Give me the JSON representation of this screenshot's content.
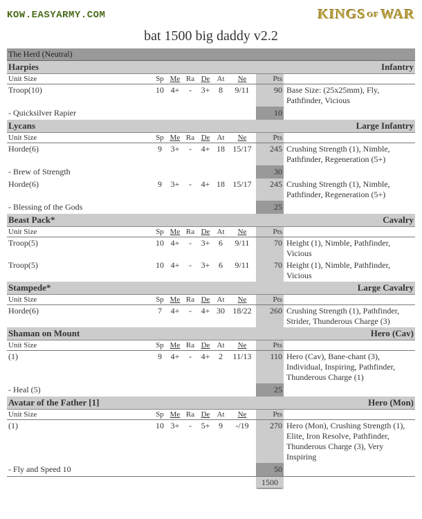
{
  "header": {
    "site_url": "KOW.EASYARMY.COM",
    "logo_left": "KINGS",
    "logo_mid": "OF",
    "logo_right": "WAR"
  },
  "list_title": "bat 1500 big daddy v2.2",
  "faction": "The Herd (Neutral)",
  "stat_labels": {
    "unit_size": "Unit Size",
    "sp": "Sp",
    "me": "Me",
    "ra": "Ra",
    "de": "De",
    "at": "At",
    "ne": "Ne",
    "pts": "Pts"
  },
  "units": [
    {
      "name": "Harpies",
      "type": "Infantry",
      "rows": [
        {
          "size": "Troop(10)",
          "sp": "10",
          "me": "4+",
          "ra": "-",
          "de": "3+",
          "at": "8",
          "ne": "9/11",
          "pts": "90",
          "special": "Base Size: (25x25mm), Fly, Pathfinder, Vicious"
        }
      ],
      "items": [
        {
          "label": " - Quicksilver Rapier",
          "pts": "10"
        }
      ]
    },
    {
      "name": "Lycans",
      "type": "Large Infantry",
      "rows": [
        {
          "size": "Horde(6)",
          "sp": "9",
          "me": "3+",
          "ra": "-",
          "de": "4+",
          "at": "18",
          "ne": "15/17",
          "pts": "245",
          "special": "Crushing Strength (1), Nimble, Pathfinder, Regeneration (5+)"
        }
      ],
      "items": [
        {
          "label": " - Brew of Strength",
          "pts": "30"
        }
      ],
      "rows2": [
        {
          "size": "Horde(6)",
          "sp": "9",
          "me": "3+",
          "ra": "-",
          "de": "4+",
          "at": "18",
          "ne": "15/17",
          "pts": "245",
          "special": "Crushing Strength (1), Nimble, Pathfinder, Regeneration (5+)"
        }
      ],
      "items2": [
        {
          "label": " - Blessing of the Gods",
          "pts": "25"
        }
      ]
    },
    {
      "name": "Beast Pack*",
      "type": "Cavalry",
      "rows": [
        {
          "size": "Troop(5)",
          "sp": "10",
          "me": "4+",
          "ra": "-",
          "de": "3+",
          "at": "6",
          "ne": "9/11",
          "pts": "70",
          "special": "Height (1), Nimble, Pathfinder, Vicious"
        },
        {
          "size": "Troop(5)",
          "sp": "10",
          "me": "4+",
          "ra": "-",
          "de": "3+",
          "at": "6",
          "ne": "9/11",
          "pts": "70",
          "special": "Height (1), Nimble, Pathfinder, Vicious"
        }
      ]
    },
    {
      "name": "Stampede*",
      "type": "Large Cavalry",
      "rows": [
        {
          "size": "Horde(6)",
          "sp": "7",
          "me": "4+",
          "ra": "-",
          "de": "4+",
          "at": "30",
          "ne": "18/22",
          "pts": "260",
          "special": "Crushing Strength (1), Pathfinder, Strider, Thunderous Charge (3)"
        }
      ]
    },
    {
      "name": "Shaman on Mount",
      "type": "Hero (Cav)",
      "rows": [
        {
          "size": "     (1)",
          "sp": "9",
          "me": "4+",
          "ra": "-",
          "de": "4+",
          "at": "2",
          "ne": "11/13",
          "pts": "110",
          "special": "Hero (Cav), Bane-chant (3), Individual, Inspiring, Pathfinder, Thunderous Charge (1)"
        }
      ],
      "items": [
        {
          "label": " - Heal (5)",
          "pts": "25"
        }
      ]
    },
    {
      "name": "Avatar of the Father [1]",
      "type": "Hero (Mon)",
      "rows": [
        {
          "size": "     (1)",
          "sp": "10",
          "me": "3+",
          "ra": "-",
          "de": "5+",
          "at": "9",
          "ne": "-/19",
          "pts": "270",
          "special": "Hero (Mon), Crushing Strength (1), Elite, Iron Resolve, Pathfinder, Thunderous Charge (3), Very Inspiring"
        }
      ],
      "items": [
        {
          "label": " - Fly and Speed 10",
          "pts": "50"
        }
      ]
    }
  ],
  "total": "1500"
}
